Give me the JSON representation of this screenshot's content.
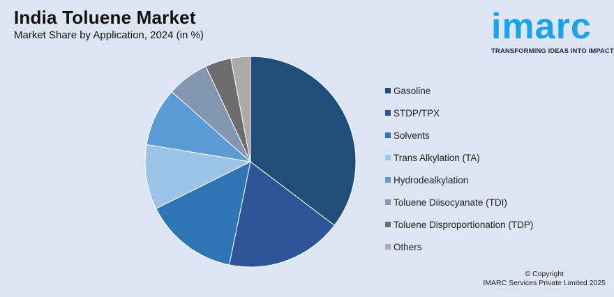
{
  "header": {
    "title": "India Toluene Market",
    "subtitle": "Market Share by Application, 2024 (in %)"
  },
  "logo": {
    "word": "imarc",
    "tagline": "TRANSFORMING IDEAS INTO IMPACT",
    "color": "#1aa3e8"
  },
  "footer": {
    "line1": "© Copyright",
    "line2": "IMARC Services Private Limited 2025"
  },
  "chart_data": {
    "type": "pie",
    "title": "India Toluene Market",
    "subtitle": "Market Share by Application, 2024 (in %)",
    "unit": "%",
    "legend_position": "right",
    "categories": [
      "Gasoline",
      "STDP/TPX",
      "Solvents",
      "Trans Alkylation (TA)",
      "Hydrodealkylation",
      "Toluene Diisocyanate (TDI)",
      "Toluene Disproportionation (TDP)",
      "Others"
    ],
    "values": [
      35.5,
      18,
      14.5,
      10,
      9,
      6.5,
      4,
      3
    ],
    "colors": [
      "#1f4e79",
      "#2e5597",
      "#2e75b6",
      "#9dc3e6",
      "#5b9bd5",
      "#8497b0",
      "#6d6d6d",
      "#aeaaaa"
    ]
  }
}
